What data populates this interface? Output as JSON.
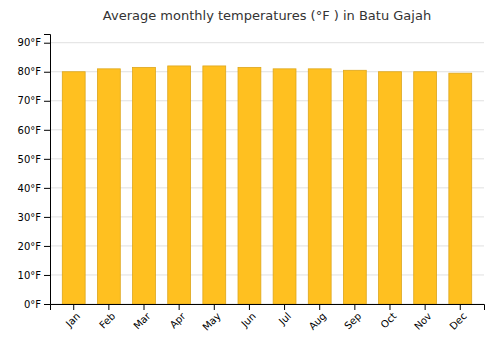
{
  "chart_data": {
    "type": "bar",
    "title": "Average monthly temperatures (°F ) in Batu Gajah",
    "categories": [
      "Jan",
      "Feb",
      "Mar",
      "Apr",
      "May",
      "Jun",
      "Jul",
      "Aug",
      "Sep",
      "Oct",
      "Nov",
      "Dec"
    ],
    "values": [
      80,
      81,
      81.5,
      82,
      82,
      81.5,
      81,
      81,
      80.5,
      80,
      80,
      79.5
    ],
    "color": "#FFC020",
    "ylim": [
      0,
      93
    ],
    "yticks": [
      {
        "value": 0,
        "label": "0°F"
      },
      {
        "value": 10,
        "label": "10°F"
      },
      {
        "value": 20,
        "label": "20°F"
      },
      {
        "value": 30,
        "label": "30°F"
      },
      {
        "value": 40,
        "label": "40°F"
      },
      {
        "value": 50,
        "label": "50°F"
      },
      {
        "value": 60,
        "label": "60°F"
      },
      {
        "value": 70,
        "label": "70°F"
      },
      {
        "value": 80,
        "label": "80°F"
      },
      {
        "value": 90,
        "label": "90°F"
      }
    ],
    "grid": true
  }
}
